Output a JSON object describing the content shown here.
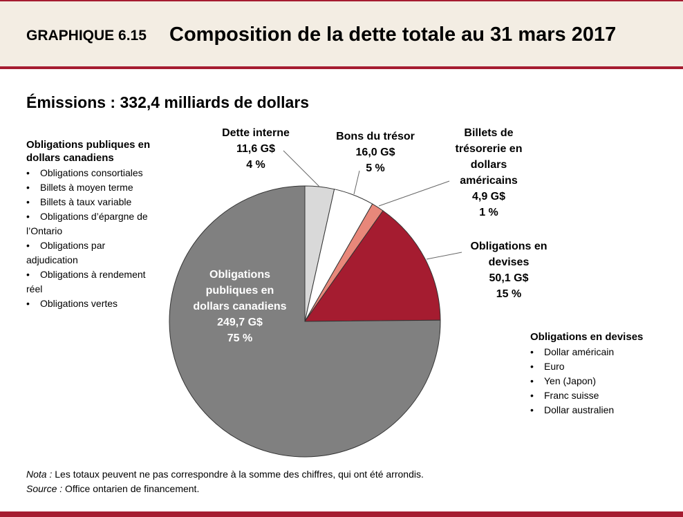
{
  "header": {
    "label": "GRAPHIQUE 6.15",
    "title": "Composition de la dette totale au 31 mars 2017"
  },
  "chart_data": {
    "type": "pie",
    "title": "Émissions : 332,4 milliards de dollars",
    "categories": [
      "Dette interne",
      "Bons du trésor",
      "Billets de trésorerie en dollars américains",
      "Obligations en devises",
      "Obligations publiques en dollars canadiens"
    ],
    "values": [
      11.6,
      16.0,
      4.9,
      50.1,
      249.7
    ],
    "value_labels": [
      "11,6 G$",
      "16,0 G$",
      "4,9 G$",
      "50,1 G$",
      "249,7 G$"
    ],
    "percent_labels": [
      "4 %",
      "5 %",
      "1 %",
      "15 %",
      "75 %"
    ],
    "colors": [
      "#d9d9d9",
      "#ffffff",
      "#e8877a",
      "#a51c30",
      "#808080"
    ]
  },
  "left_list": {
    "title": "Obligations publiques en dollars canadiens",
    "items": [
      "Obligations consortiales",
      "Billets à moyen terme",
      "Billets à taux variable",
      "Obligations d’épargne de l’Ontario",
      "Obligations par adjudication",
      "Obligations à rendement réel",
      "Obligations vertes"
    ]
  },
  "right_list": {
    "title": "Obligations en devises",
    "items": [
      "Dollar américain",
      "Euro",
      "Yen (Japon)",
      "Franc suisse",
      "Dollar australien"
    ]
  },
  "notes": {
    "nota_label": "Nota :",
    "nota": "Les totaux peuvent ne pas correspondre à la somme des chiffres, qui ont été arrondis.",
    "source_label": "Source :",
    "source": "Office ontarien de financement."
  }
}
